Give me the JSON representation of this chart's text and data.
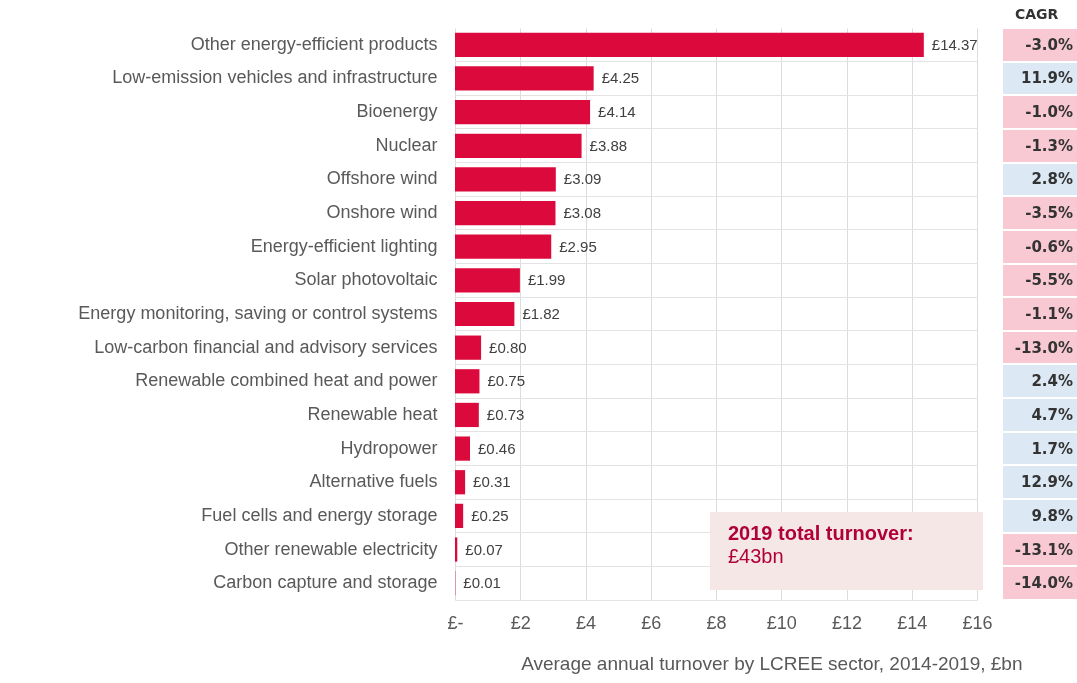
{
  "chart_data": {
    "type": "bar",
    "orientation": "horizontal",
    "xlabel": "Average annual turnover by LCREE sector, 2014-2019, £bn",
    "categories": [
      "Other energy-efficient products",
      "Low-emission vehicles and infrastructure",
      "Bioenergy",
      "Nuclear",
      "Offshore wind",
      "Onshore wind",
      "Energy-efficient lighting",
      "Solar photovoltaic",
      "Energy monitoring, saving or control systems",
      "Low-carbon financial and advisory services",
      "Renewable combined heat and power",
      "Renewable heat",
      "Hydropower",
      "Alternative fuels",
      "Fuel cells and energy storage",
      "Other renewable electricity",
      "Carbon capture and storage"
    ],
    "values": [
      14.37,
      4.25,
      4.14,
      3.88,
      3.09,
      3.08,
      2.95,
      1.99,
      1.82,
      0.8,
      0.75,
      0.73,
      0.46,
      0.31,
      0.25,
      0.07,
      0.01
    ],
    "value_labels": [
      "£14.37",
      "£4.25",
      "£4.14",
      "£3.88",
      "£3.09",
      "£3.08",
      "£2.95",
      "£1.99",
      "£1.82",
      "£0.80",
      "£0.75",
      "£0.73",
      "£0.46",
      "£0.31",
      "£0.25",
      "£0.07",
      "£0.01"
    ],
    "color": "#dc0a3c",
    "xlim": [
      0,
      16
    ],
    "xticks": [
      {
        "value": 0,
        "label": "£-"
      },
      {
        "value": 2,
        "label": "£2"
      },
      {
        "value": 4,
        "label": "£4"
      },
      {
        "value": 6,
        "label": "£6"
      },
      {
        "value": 8,
        "label": "£8"
      },
      {
        "value": 10,
        "label": "£10"
      },
      {
        "value": 12,
        "label": "£12"
      },
      {
        "value": 14,
        "label": "£14"
      },
      {
        "value": 16,
        "label": "£16"
      }
    ],
    "grid": "x",
    "annotations": [
      "CAGR",
      "-3.0%",
      "11.9%",
      "-1.0%",
      "-1.3%",
      "2.8%",
      "-3.5%",
      "-0.6%",
      "-5.5%",
      "-1.1%",
      "-13.0%",
      "2.4%",
      "4.7%",
      "1.7%",
      "12.9%",
      "9.8%",
      "-13.1%",
      "-14.0%",
      "2019 total turnover:",
      "£43bn"
    ]
  }
}
